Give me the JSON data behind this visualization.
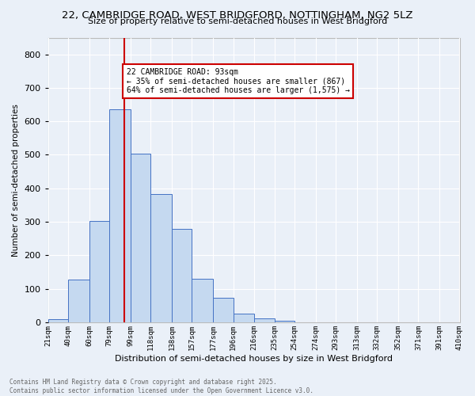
{
  "title1": "22, CAMBRIDGE ROAD, WEST BRIDGFORD, NOTTINGHAM, NG2 5LZ",
  "title2": "Size of property relative to semi-detached houses in West Bridgford",
  "xlabel": "Distribution of semi-detached houses by size in West Bridgford",
  "ylabel": "Number of semi-detached properties",
  "bin_labels": [
    "21sqm",
    "40sqm",
    "60sqm",
    "79sqm",
    "99sqm",
    "118sqm",
    "138sqm",
    "157sqm",
    "177sqm",
    "196sqm",
    "216sqm",
    "235sqm",
    "254sqm",
    "274sqm",
    "293sqm",
    "313sqm",
    "332sqm",
    "352sqm",
    "371sqm",
    "391sqm",
    "410sqm"
  ],
  "bin_edges": [
    21,
    40,
    60,
    79,
    99,
    118,
    138,
    157,
    177,
    196,
    216,
    235,
    254,
    274,
    293,
    313,
    332,
    352,
    371,
    391,
    410
  ],
  "bar_heights": [
    10,
    128,
    302,
    635,
    503,
    383,
    278,
    130,
    72,
    25,
    12,
    5,
    0,
    0,
    0,
    0,
    0,
    0,
    0,
    0
  ],
  "bar_color": "#c5d9f0",
  "bar_edge_color": "#4472c4",
  "property_line_x": 93,
  "annotation_title": "22 CAMBRIDGE ROAD: 93sqm",
  "annotation_line1": "← 35% of semi-detached houses are smaller (867)",
  "annotation_line2": "64% of semi-detached houses are larger (1,575) →",
  "annotation_box_color": "#ffffff",
  "annotation_border_color": "#cc0000",
  "vline_color": "#cc0000",
  "ylim": [
    0,
    850
  ],
  "yticks": [
    0,
    100,
    200,
    300,
    400,
    500,
    600,
    700,
    800
  ],
  "background_color": "#eaf0f8",
  "grid_color": "#ffffff",
  "footer_line1": "Contains HM Land Registry data © Crown copyright and database right 2025.",
  "footer_line2": "Contains public sector information licensed under the Open Government Licence v3.0.",
  "footer_color": "#666666"
}
